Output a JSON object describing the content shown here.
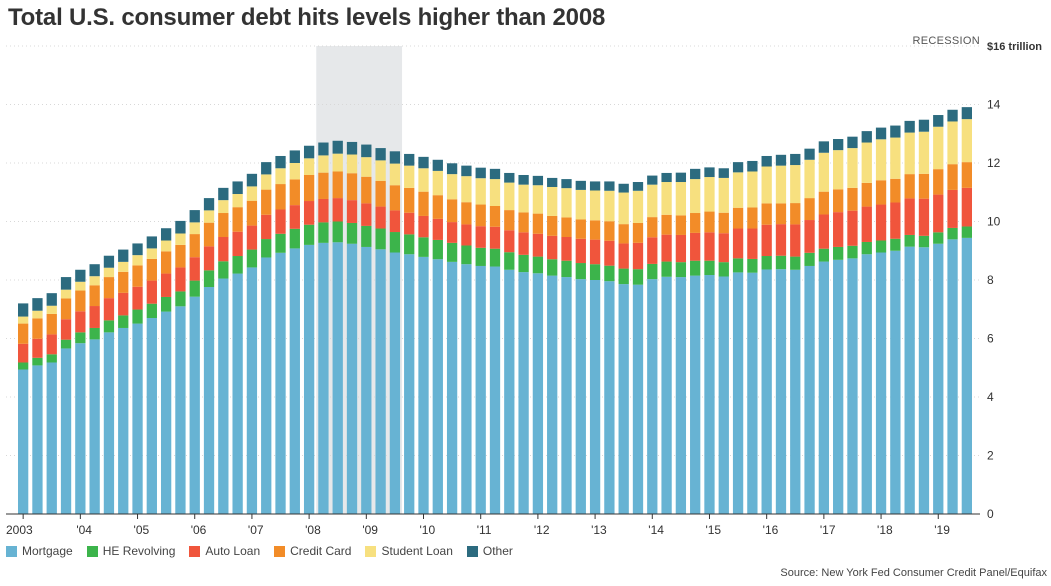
{
  "title": "Total U.S. consumer debt hits levels higher than 2008",
  "source": "Source: New York Fed Consumer Credit Panel/Equifax",
  "recession_label": "RECESSION",
  "colors": {
    "Mortgage": "#67b3d3",
    "HE Revolving": "#3cb44b",
    "Auto Loan": "#f0553c",
    "Credit Card": "#f28c28",
    "Student Loan": "#f7e07f",
    "Other": "#2c6b7f",
    "recession": "#e6e8ea",
    "grid": "#d8d8d8",
    "axis": "#333333"
  },
  "chart_data": {
    "type": "bar",
    "stacked": true,
    "unit": "$ trillion",
    "x_tick_labels": [
      "2003",
      "'04",
      "'05",
      "'06",
      "'07",
      "'08",
      "'09",
      "'10",
      "'11",
      "'12",
      "'13",
      "'14",
      "'15",
      "'16",
      "'17",
      "'18",
      "'19"
    ],
    "y_tick_labels": [
      "0",
      "2",
      "4",
      "6",
      "8",
      "10",
      "12",
      "14",
      "$16 trillion"
    ],
    "ylim": [
      0,
      16
    ],
    "grid": true,
    "legend_position": "bottom-left",
    "recession": {
      "start_index": 21,
      "end_index": 26
    },
    "categories": [
      "Q1 2003",
      "Q2 2003",
      "Q3 2003",
      "Q4 2003",
      "Q1 2004",
      "Q2 2004",
      "Q3 2004",
      "Q4 2004",
      "Q1 2005",
      "Q2 2005",
      "Q3 2005",
      "Q4 2005",
      "Q1 2006",
      "Q2 2006",
      "Q3 2006",
      "Q4 2006",
      "Q1 2007",
      "Q2 2007",
      "Q3 2007",
      "Q4 2007",
      "Q1 2008",
      "Q2 2008",
      "Q3 2008",
      "Q4 2008",
      "Q1 2009",
      "Q2 2009",
      "Q3 2009",
      "Q4 2009",
      "Q1 2010",
      "Q2 2010",
      "Q3 2010",
      "Q4 2010",
      "Q1 2011",
      "Q2 2011",
      "Q3 2011",
      "Q4 2011",
      "Q1 2012",
      "Q2 2012",
      "Q3 2012",
      "Q4 2012",
      "Q1 2013",
      "Q2 2013",
      "Q3 2013",
      "Q4 2013",
      "Q1 2014",
      "Q2 2014",
      "Q3 2014",
      "Q4 2014",
      "Q1 2015",
      "Q2 2015",
      "Q3 2015",
      "Q4 2015",
      "Q1 2016",
      "Q2 2016",
      "Q3 2016",
      "Q4 2016",
      "Q1 2017",
      "Q2 2017",
      "Q3 2017",
      "Q4 2017",
      "Q1 2018",
      "Q2 2018",
      "Q3 2018",
      "Q4 2018",
      "Q1 2019",
      "Q2 2019",
      "Q3 2019"
    ],
    "series": [
      {
        "name": "Mortgage",
        "values": [
          4.94,
          5.08,
          5.18,
          5.66,
          5.84,
          5.97,
          6.21,
          6.36,
          6.51,
          6.7,
          6.92,
          7.1,
          7.43,
          7.76,
          8.05,
          8.22,
          8.43,
          8.77,
          8.93,
          9.08,
          9.2,
          9.27,
          9.29,
          9.24,
          9.13,
          9.05,
          8.94,
          8.88,
          8.79,
          8.71,
          8.62,
          8.54,
          8.48,
          8.46,
          8.35,
          8.27,
          8.23,
          8.15,
          8.1,
          8.03,
          8.0,
          7.96,
          7.86,
          7.84,
          8.03,
          8.11,
          8.1,
          8.15,
          8.17,
          8.12,
          8.26,
          8.25,
          8.36,
          8.37,
          8.35,
          8.48,
          8.63,
          8.69,
          8.74,
          8.88,
          8.94,
          9.0,
          9.14,
          9.12,
          9.24,
          9.39,
          9.44
        ]
      },
      {
        "name": "HE Revolving",
        "values": [
          0.24,
          0.26,
          0.28,
          0.3,
          0.37,
          0.39,
          0.41,
          0.43,
          0.48,
          0.49,
          0.5,
          0.51,
          0.55,
          0.57,
          0.59,
          0.6,
          0.61,
          0.63,
          0.65,
          0.67,
          0.69,
          0.7,
          0.71,
          0.71,
          0.72,
          0.71,
          0.7,
          0.68,
          0.67,
          0.66,
          0.65,
          0.64,
          0.62,
          0.61,
          0.6,
          0.59,
          0.57,
          0.56,
          0.56,
          0.55,
          0.54,
          0.53,
          0.53,
          0.53,
          0.52,
          0.52,
          0.51,
          0.51,
          0.49,
          0.49,
          0.48,
          0.47,
          0.46,
          0.46,
          0.45,
          0.45,
          0.44,
          0.44,
          0.43,
          0.42,
          0.41,
          0.41,
          0.4,
          0.39,
          0.39,
          0.39,
          0.39
        ]
      },
      {
        "name": "Auto Loan",
        "values": [
          0.64,
          0.65,
          0.68,
          0.7,
          0.72,
          0.75,
          0.76,
          0.77,
          0.78,
          0.79,
          0.8,
          0.82,
          0.8,
          0.82,
          0.83,
          0.83,
          0.82,
          0.83,
          0.83,
          0.81,
          0.81,
          0.8,
          0.8,
          0.78,
          0.77,
          0.75,
          0.74,
          0.74,
          0.73,
          0.72,
          0.71,
          0.72,
          0.74,
          0.75,
          0.75,
          0.77,
          0.78,
          0.8,
          0.81,
          0.83,
          0.84,
          0.85,
          0.86,
          0.9,
          0.91,
          0.92,
          0.93,
          0.95,
          0.97,
          0.99,
          1.02,
          1.04,
          1.07,
          1.08,
          1.1,
          1.12,
          1.17,
          1.19,
          1.2,
          1.21,
          1.23,
          1.24,
          1.25,
          1.27,
          1.29,
          1.3,
          1.32
        ]
      },
      {
        "name": "Credit Card",
        "values": [
          0.69,
          0.7,
          0.7,
          0.71,
          0.71,
          0.71,
          0.72,
          0.72,
          0.73,
          0.74,
          0.76,
          0.77,
          0.79,
          0.81,
          0.82,
          0.84,
          0.85,
          0.86,
          0.87,
          0.88,
          0.89,
          0.9,
          0.91,
          0.92,
          0.91,
          0.88,
          0.86,
          0.85,
          0.83,
          0.81,
          0.78,
          0.76,
          0.74,
          0.71,
          0.69,
          0.68,
          0.69,
          0.68,
          0.67,
          0.66,
          0.66,
          0.67,
          0.66,
          0.68,
          0.69,
          0.68,
          0.67,
          0.68,
          0.71,
          0.7,
          0.71,
          0.72,
          0.73,
          0.71,
          0.73,
          0.75,
          0.78,
          0.78,
          0.78,
          0.81,
          0.83,
          0.81,
          0.83,
          0.85,
          0.87,
          0.88,
          0.88
        ]
      },
      {
        "name": "Student Loan",
        "values": [
          0.24,
          0.26,
          0.28,
          0.3,
          0.3,
          0.31,
          0.32,
          0.34,
          0.35,
          0.36,
          0.37,
          0.39,
          0.4,
          0.42,
          0.44,
          0.45,
          0.49,
          0.52,
          0.54,
          0.56,
          0.57,
          0.59,
          0.61,
          0.64,
          0.67,
          0.7,
          0.74,
          0.76,
          0.8,
          0.83,
          0.86,
          0.89,
          0.9,
          0.92,
          0.94,
          0.95,
          0.97,
          0.99,
          1.0,
          1.01,
          1.02,
          1.04,
          1.08,
          1.1,
          1.11,
          1.12,
          1.14,
          1.16,
          1.18,
          1.19,
          1.21,
          1.23,
          1.26,
          1.29,
          1.3,
          1.31,
          1.33,
          1.34,
          1.36,
          1.38,
          1.4,
          1.41,
          1.42,
          1.44,
          1.45,
          1.46,
          1.47
        ]
      },
      {
        "name": "Other",
        "values": [
          0.45,
          0.43,
          0.43,
          0.43,
          0.41,
          0.41,
          0.41,
          0.42,
          0.4,
          0.41,
          0.42,
          0.43,
          0.42,
          0.42,
          0.42,
          0.43,
          0.43,
          0.42,
          0.42,
          0.43,
          0.43,
          0.44,
          0.44,
          0.43,
          0.43,
          0.42,
          0.42,
          0.4,
          0.39,
          0.38,
          0.37,
          0.36,
          0.36,
          0.35,
          0.33,
          0.33,
          0.32,
          0.31,
          0.31,
          0.31,
          0.31,
          0.32,
          0.3,
          0.3,
          0.31,
          0.31,
          0.32,
          0.35,
          0.33,
          0.33,
          0.35,
          0.36,
          0.36,
          0.37,
          0.38,
          0.38,
          0.39,
          0.38,
          0.39,
          0.39,
          0.4,
          0.41,
          0.4,
          0.41,
          0.4,
          0.4,
          0.41
        ]
      }
    ]
  }
}
